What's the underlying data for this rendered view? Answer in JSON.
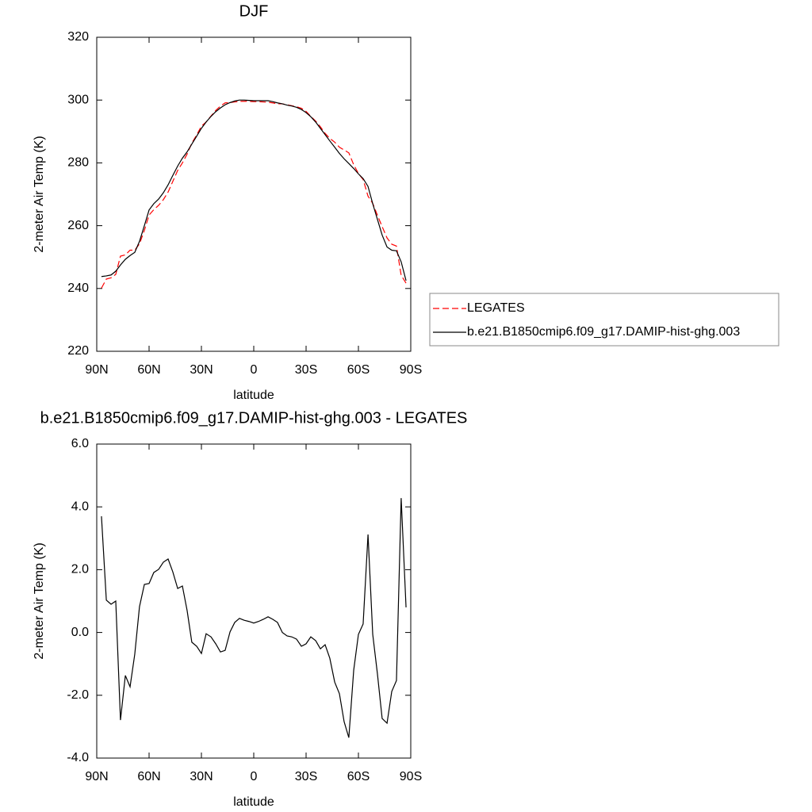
{
  "chart_data": [
    {
      "type": "line",
      "title": "DJF",
      "xlabel": "latitude",
      "ylabel": "2-meter Air Temp (K)",
      "x": [
        87.3,
        84.5,
        81.8,
        79.1,
        76.4,
        73.6,
        70.9,
        68.2,
        65.5,
        62.7,
        60.0,
        57.3,
        54.5,
        51.8,
        49.1,
        46.4,
        43.6,
        40.9,
        38.2,
        35.5,
        32.7,
        30.0,
        27.3,
        24.5,
        21.8,
        19.1,
        16.4,
        13.6,
        10.9,
        8.2,
        5.5,
        2.7,
        0,
        -2.7,
        -5.5,
        -8.2,
        -10.9,
        -13.6,
        -16.4,
        -19.1,
        -21.8,
        -24.5,
        -27.3,
        -30.0,
        -32.7,
        -35.5,
        -38.2,
        -40.9,
        -43.6,
        -46.4,
        -49.1,
        -51.8,
        -54.5,
        -57.3,
        -60.0,
        -62.7,
        -65.5,
        -68.2,
        -70.9,
        -73.6,
        -76.4,
        -79.1,
        -81.8,
        -84.5,
        -87.3
      ],
      "series": [
        {
          "name": "LEGATES",
          "color": "#ff0000",
          "dash": true,
          "values": [
            240.1,
            243.0,
            243.4,
            244.5,
            250.3,
            250.7,
            252.2,
            252.2,
            254.2,
            258.5,
            263.4,
            265.1,
            266.5,
            268.3,
            270.7,
            274.1,
            277.6,
            280.0,
            282.8,
            286.3,
            288.9,
            291.7,
            293.0,
            294.9,
            296.7,
            298.1,
            299.1,
            299.2,
            299.4,
            299.6,
            299.6,
            299.6,
            299.5,
            299.5,
            299.4,
            299.3,
            299.1,
            298.8,
            298.8,
            298.5,
            298.2,
            297.9,
            297.4,
            296.4,
            294.8,
            293.3,
            291.5,
            289.4,
            287.8,
            286.6,
            285.0,
            284.1,
            283.2,
            279.4,
            276.6,
            274.7,
            269.4,
            267.1,
            263.3,
            259.7,
            256.1,
            254.1,
            253.5,
            244.2,
            241.7
          ]
        },
        {
          "name": "b.e21.B1850cmip6.f09_g17.DAMIP-hist-ghg.003",
          "color": "#000000",
          "dash": false,
          "values": [
            243.8,
            244.0,
            244.3,
            245.5,
            247.5,
            249.3,
            250.5,
            251.5,
            255,
            260,
            265,
            267,
            268.5,
            270.5,
            273,
            276,
            279,
            281.5,
            283.5,
            286,
            288.5,
            291,
            293,
            294.8,
            296.3,
            297.5,
            298.5,
            299.2,
            299.7,
            300,
            300,
            299.9,
            299.8,
            299.8,
            299.8,
            299.8,
            299.5,
            299.1,
            298.8,
            298.4,
            298.1,
            297.7,
            297,
            296,
            294.7,
            293,
            291,
            289,
            287,
            285,
            283,
            281.3,
            279.8,
            278.2,
            276.5,
            275,
            272.5,
            267,
            262,
            257,
            253.2,
            252.2,
            252,
            248.5,
            242.5
          ]
        }
      ],
      "xlim": [
        90,
        -90
      ],
      "xticks": [
        {
          "value": 90,
          "label": "90N"
        },
        {
          "value": 60,
          "label": "60N"
        },
        {
          "value": 30,
          "label": "30N"
        },
        0,
        {
          "value": -30,
          "label": "30S"
        },
        {
          "value": -60,
          "label": "60S"
        },
        {
          "value": -90,
          "label": "90S"
        }
      ],
      "ylim": [
        220,
        320
      ],
      "yticks": [
        220,
        240,
        260,
        280,
        300,
        320
      ],
      "legend": "right"
    },
    {
      "type": "line",
      "title": "b.e21.B1850cmip6.f09_g17.DAMIP-hist-ghg.003 - LEGATES",
      "xlabel": "latitude",
      "ylabel": "2-meter Air Temp (K)",
      "x": [
        87.3,
        84.5,
        81.8,
        79.1,
        76.4,
        73.6,
        70.9,
        68.2,
        65.5,
        62.7,
        60.0,
        57.3,
        54.5,
        51.8,
        49.1,
        46.4,
        43.6,
        40.9,
        38.2,
        35.5,
        32.7,
        30.0,
        27.3,
        24.5,
        21.8,
        19.1,
        16.4,
        13.6,
        10.9,
        8.2,
        5.5,
        2.7,
        0,
        -2.7,
        -5.5,
        -8.2,
        -10.9,
        -13.6,
        -16.4,
        -19.1,
        -21.8,
        -24.5,
        -27.3,
        -30.0,
        -32.7,
        -35.5,
        -38.2,
        -40.9,
        -43.6,
        -46.4,
        -49.1,
        -51.8,
        -54.5,
        -57.3,
        -60.0,
        -62.7,
        -65.5,
        -68.2,
        -70.9,
        -73.6,
        -76.4,
        -79.1,
        -81.8,
        -84.5,
        -87.3
      ],
      "series": [
        {
          "color": "#000000",
          "dash": false,
          "values": [
            3.7,
            1.03,
            0.9,
            1.0,
            -2.79,
            -1.37,
            -1.73,
            -0.69,
            0.82,
            1.53,
            1.56,
            1.91,
            2.01,
            2.24,
            2.34,
            1.93,
            1.4,
            1.48,
            0.7,
            -0.31,
            -0.44,
            -0.67,
            -0.04,
            -0.14,
            -0.36,
            -0.62,
            -0.57,
            0.02,
            0.32,
            0.45,
            0.39,
            0.35,
            0.3,
            0.35,
            0.42,
            0.5,
            0.42,
            0.32,
            0.0,
            -0.11,
            -0.14,
            -0.21,
            -0.44,
            -0.36,
            -0.14,
            -0.26,
            -0.52,
            -0.39,
            -0.82,
            -1.58,
            -1.95,
            -2.84,
            -3.35,
            -1.2,
            -0.06,
            0.27,
            3.12,
            -0.06,
            -1.32,
            -2.74,
            -2.89,
            -1.88,
            -1.53,
            4.28,
            0.8
          ]
        }
      ],
      "xlim": [
        90,
        -90
      ],
      "xticks": [
        {
          "value": 90,
          "label": "90N"
        },
        {
          "value": 60,
          "label": "60N"
        },
        {
          "value": 30,
          "label": "30N"
        },
        0,
        {
          "value": -30,
          "label": "30S"
        },
        {
          "value": -60,
          "label": "60S"
        },
        {
          "value": -90,
          "label": "90S"
        }
      ],
      "ylim": [
        -4,
        6
      ],
      "yticks": [
        {
          "value": -4,
          "label": "-4.0"
        },
        {
          "value": -2,
          "label": "-2.0"
        },
        {
          "value": 0,
          "label": "0.0"
        },
        {
          "value": 2,
          "label": "2.0"
        },
        {
          "value": 4,
          "label": "4.0"
        },
        {
          "value": 6,
          "label": "6.0"
        }
      ]
    }
  ]
}
